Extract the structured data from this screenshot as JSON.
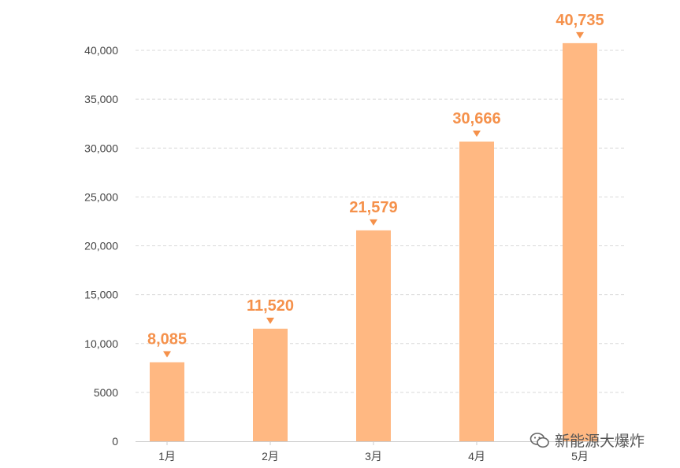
{
  "chart_data": {
    "type": "bar",
    "categories": [
      "1月",
      "2月",
      "3月",
      "4月",
      "5月"
    ],
    "values": [
      8085,
      11520,
      21579,
      30666,
      40735
    ],
    "data_labels": [
      "8,085",
      "11,520",
      "21,579",
      "30,666",
      "40,735"
    ],
    "y_ticks": [
      0,
      5000,
      10000,
      15000,
      20000,
      25000,
      30000,
      35000,
      40000
    ],
    "y_tick_labels": [
      "0",
      "5000",
      "10,000",
      "15,000",
      "20,000",
      "25,000",
      "30,000",
      "35,000",
      "40,000"
    ],
    "ylim": [
      0,
      40000
    ],
    "grid": true,
    "colors": {
      "bar": "#FFB882",
      "label": "#F5914B",
      "grid": "#D9D9D9",
      "axis": "#CCCCCC"
    }
  },
  "watermark": {
    "text": "新能源大爆炸",
    "icon": "wechat-icon"
  }
}
